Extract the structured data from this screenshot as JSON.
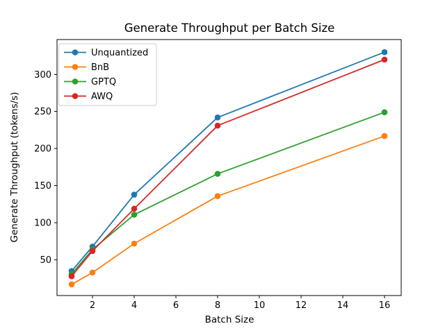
{
  "figure": {
    "background": "#ffffff",
    "frame_color": "#000000"
  },
  "chart_data": {
    "type": "line",
    "title": "Generate Throughput per Batch Size",
    "xlabel": "Batch Size",
    "ylabel": "Generate Throughput (tokens/s)",
    "x": [
      1,
      2,
      4,
      8,
      16
    ],
    "series": [
      {
        "name": "Unquantized",
        "color": "#1f77b4",
        "values": [
          35,
          68,
          138,
          242,
          330
        ]
      },
      {
        "name": "BnB",
        "color": "#ff7f0e",
        "values": [
          17,
          33,
          72,
          136,
          217
        ]
      },
      {
        "name": "GPTQ",
        "color": "#2ca02c",
        "values": [
          31,
          64,
          111,
          166,
          249
        ]
      },
      {
        "name": "AWQ",
        "color": "#d62728",
        "values": [
          28,
          62,
          119,
          231,
          320
        ]
      }
    ],
    "xticks": [
      2,
      4,
      6,
      8,
      10,
      12,
      14,
      16
    ],
    "yticks": [
      50,
      100,
      150,
      200,
      250,
      300
    ],
    "xlim": [
      0.3,
      16.8
    ],
    "ylim": [
      2,
      347
    ],
    "grid": false,
    "marker": "o",
    "legend": {
      "position": "upper-left",
      "entries": [
        "Unquantized",
        "BnB",
        "GPTQ",
        "AWQ"
      ],
      "border_color": "#cccccc",
      "background": "#ffffff"
    }
  }
}
